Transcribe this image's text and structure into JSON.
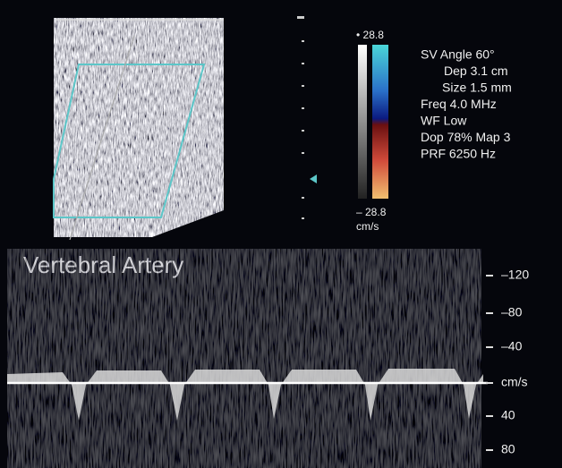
{
  "color_bar": {
    "top": "• 28.8",
    "bottom": "– 28.8",
    "unit": "cm/s"
  },
  "parameters": [
    "SV Angle 60°",
    "Dep 3.1  cm",
    "Size 1.5  mm",
    "Freq 4.0  MHz",
    "WF Low",
    "Dop 78%  Map 3",
    "PRF 6250  Hz"
  ],
  "label": "Vertebral Artery",
  "spectral_scale": [
    "–120",
    "–80",
    "–40",
    "cm/s",
    "40",
    "80"
  ]
}
